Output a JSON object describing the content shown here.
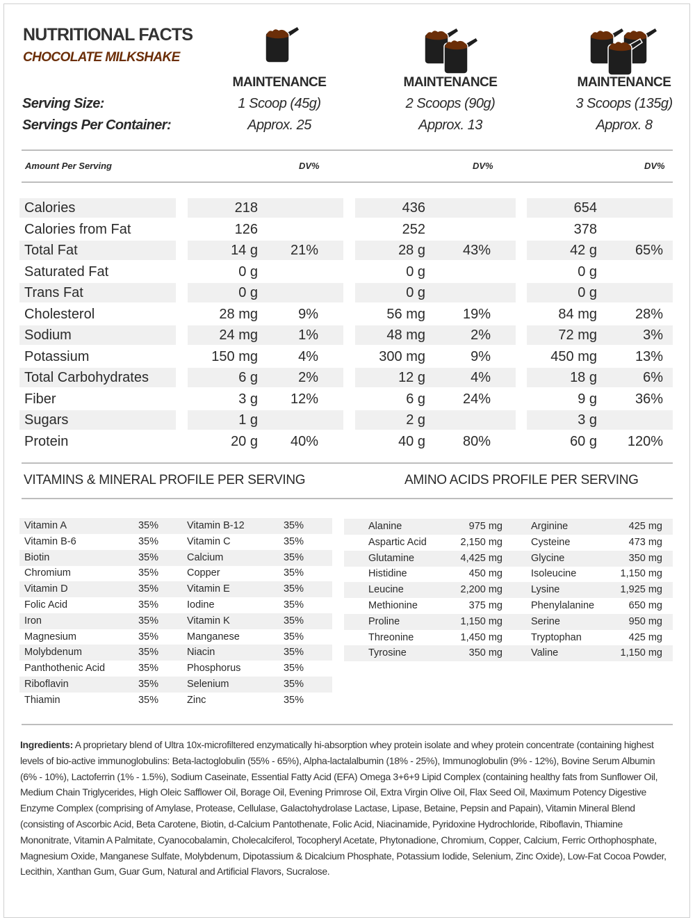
{
  "header": {
    "title": "NUTRITIONAL FACTS",
    "subtitle": "CHOCOLATE MILKSHAKE",
    "serving_size_label": "Serving Size:",
    "servings_label": "Servings Per Container:",
    "amount_label": "Amount Per Serving",
    "dv_label": "DV%"
  },
  "columns": [
    {
      "plan": "MAINTENANCE",
      "serving": "1 Scoop (45g)",
      "servings": "Approx. 25",
      "scoops": 1
    },
    {
      "plan": "MAINTENANCE",
      "serving": "2 Scoops (90g)",
      "servings": "Approx. 13",
      "scoops": 2
    },
    {
      "plan": "MAINTENANCE",
      "serving": "3 Scoops (135g)",
      "servings": "Approx. 8",
      "scoops": 3
    }
  ],
  "colors": {
    "chocolate": "#6b2e08",
    "scoop": "#1e1e1e",
    "stripe": "#f0f0f0"
  },
  "nutrients": [
    {
      "name": "Calories",
      "v": [
        [
          "218",
          ""
        ],
        [
          "436",
          ""
        ],
        [
          "654",
          ""
        ]
      ]
    },
    {
      "name": "Calories from Fat",
      "v": [
        [
          "126",
          ""
        ],
        [
          "252",
          ""
        ],
        [
          "378",
          ""
        ]
      ]
    },
    {
      "name": "Total Fat",
      "v": [
        [
          "14 g",
          "21%"
        ],
        [
          "28 g",
          "43%"
        ],
        [
          "42 g",
          "65%"
        ]
      ]
    },
    {
      "name": "Saturated Fat",
      "v": [
        [
          "0 g",
          ""
        ],
        [
          "0 g",
          ""
        ],
        [
          "0 g",
          ""
        ]
      ]
    },
    {
      "name": "Trans Fat",
      "v": [
        [
          "0 g",
          ""
        ],
        [
          "0 g",
          ""
        ],
        [
          "0 g",
          ""
        ]
      ]
    },
    {
      "name": "Cholesterol",
      "v": [
        [
          "28 mg",
          "9%"
        ],
        [
          "56 mg",
          "19%"
        ],
        [
          "84 mg",
          "28%"
        ]
      ]
    },
    {
      "name": "Sodium",
      "v": [
        [
          "24 mg",
          "1%"
        ],
        [
          "48 mg",
          "2%"
        ],
        [
          "72 mg",
          "3%"
        ]
      ]
    },
    {
      "name": "Potassium",
      "v": [
        [
          "150 mg",
          "4%"
        ],
        [
          "300 mg",
          "9%"
        ],
        [
          "450 mg",
          "13%"
        ]
      ]
    },
    {
      "name": "Total Carbohydrates",
      "v": [
        [
          "6 g",
          "2%"
        ],
        [
          "12 g",
          "4%"
        ],
        [
          "18 g",
          "6%"
        ]
      ]
    },
    {
      "name": "Fiber",
      "v": [
        [
          "3 g",
          "12%"
        ],
        [
          "6 g",
          "24%"
        ],
        [
          "9 g",
          "36%"
        ]
      ]
    },
    {
      "name": "Sugars",
      "v": [
        [
          "1 g",
          ""
        ],
        [
          "2 g",
          ""
        ],
        [
          "3 g",
          ""
        ]
      ]
    },
    {
      "name": "Protein",
      "v": [
        [
          "20 g",
          "40%"
        ],
        [
          "40 g",
          "80%"
        ],
        [
          "60 g",
          "120%"
        ]
      ]
    }
  ],
  "vitamins_title": "VITAMINS & MINERAL PROFILE PER SERVING",
  "amino_title": "AMINO ACIDS PROFILE PER SERVING",
  "vitamins": [
    [
      [
        "Vitamin A",
        "35%"
      ],
      [
        "Vitamin B-12",
        "35%"
      ]
    ],
    [
      [
        "Vitamin B-6",
        "35%"
      ],
      [
        "Vitamin C",
        "35%"
      ]
    ],
    [
      [
        "Biotin",
        "35%"
      ],
      [
        "Calcium",
        "35%"
      ]
    ],
    [
      [
        "Chromium",
        "35%"
      ],
      [
        "Copper",
        "35%"
      ]
    ],
    [
      [
        "Vitamin D",
        "35%"
      ],
      [
        "Vitamin E",
        "35%"
      ]
    ],
    [
      [
        "Folic Acid",
        "35%"
      ],
      [
        "Iodine",
        "35%"
      ]
    ],
    [
      [
        "Iron",
        "35%"
      ],
      [
        "Vitamin K",
        "35%"
      ]
    ],
    [
      [
        "Magnesium",
        "35%"
      ],
      [
        "Manganese",
        "35%"
      ]
    ],
    [
      [
        "Molybdenum",
        "35%"
      ],
      [
        "Niacin",
        "35%"
      ]
    ],
    [
      [
        "Panthothenic Acid",
        "35%"
      ],
      [
        "Phosphorus",
        "35%"
      ]
    ],
    [
      [
        "Riboflavin",
        "35%"
      ],
      [
        "Selenium",
        "35%"
      ]
    ],
    [
      [
        "Thiamin",
        "35%"
      ],
      [
        "Zinc",
        "35%"
      ]
    ]
  ],
  "amino": [
    [
      [
        "Alanine",
        "975 mg"
      ],
      [
        "Arginine",
        "425 mg"
      ]
    ],
    [
      [
        "Aspartic Acid",
        "2,150 mg"
      ],
      [
        "Cysteine",
        "473 mg"
      ]
    ],
    [
      [
        "Glutamine",
        "4,425 mg"
      ],
      [
        "Glycine",
        "350 mg"
      ]
    ],
    [
      [
        "Histidine",
        "450 mg"
      ],
      [
        "Isoleucine",
        "1,150 mg"
      ]
    ],
    [
      [
        "Leucine",
        "2,200 mg"
      ],
      [
        "Lysine",
        "1,925 mg"
      ]
    ],
    [
      [
        "Methionine",
        "375 mg"
      ],
      [
        "Phenylalanine",
        "650 mg"
      ]
    ],
    [
      [
        "Proline",
        "1,150 mg"
      ],
      [
        "Serine",
        "950 mg"
      ]
    ],
    [
      [
        "Threonine",
        "1,450 mg"
      ],
      [
        "Tryptophan",
        "425 mg"
      ]
    ],
    [
      [
        "Tyrosine",
        "350 mg"
      ],
      [
        "Valine",
        "1,150 mg"
      ]
    ]
  ],
  "ingredients": {
    "label": "Ingredients:",
    "text": " A proprietary blend of Ultra 10x-microfiltered enzymatically hi-absorption whey protein isolate and whey protein concentrate (containing highest levels of bio-active immunoglobulins:  Beta-lactoglobulin (55% - 65%), Alpha-lactalalbumin (18% - 25%), Immunoglobulin (9% - 12%), Bovine Serum Albumin (6% - 10%), Lactoferrin (1% - 1.5%), Sodium Caseinate, Essential Fatty Acid (EFA) Omega 3+6+9 Lipid Complex (containing healthy fats from Sunflower Oil, Medium Chain Triglycerides, High Oleic Safflower Oil, Borage Oil, Evening Primrose Oil, Extra Virgin Olive Oil, Flax Seed Oil, Maximum Potency Digestive Enzyme Complex (comprising of Amylase, Protease, Cellulase, Galactohydrolase Lactase, Lipase, Betaine, Pepsin and Papain), Vitamin Mineral Blend (consisting of Ascorbic Acid, Beta Carotene, Biotin, d-Calcium Pantothenate, Folic Acid, Niacinamide, Pyridoxine Hydrochloride, Riboflavin, Thiamine Mononitrate, Vitamin A Palmitate, Cyanocobalamin, Cholecalciferol, Tocopheryl Acetate, Phytonadione, Chromium, Copper, Calcium, Ferric Orthophosphate, Magnesium Oxide, Manganese Sulfate, Molybdenum, Dipotassium & Dicalcium Phosphate, Potassium Iodide, Selenium, Zinc Oxide), Low-Fat Cocoa Powder, Lecithin, Xanthan Gum, Guar Gum, Natural and Artificial Flavors, Sucralose."
  }
}
